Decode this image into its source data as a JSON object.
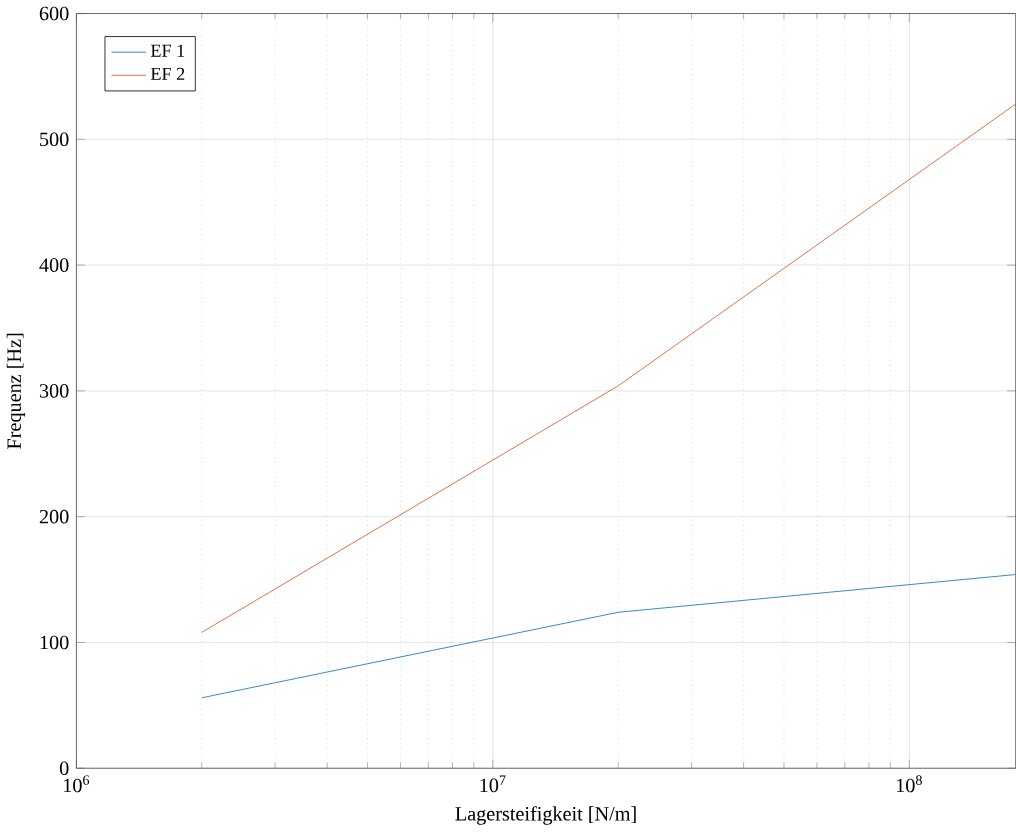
{
  "chart_data": {
    "type": "line",
    "xlabel": "Lagersteifigkeit [N/m]",
    "ylabel": "Frequenz [Hz]",
    "log": "x",
    "xlim": [
      1000000,
      180000000
    ],
    "ylim": [
      0,
      600
    ],
    "xticks": [
      {
        "value": 1000000,
        "label": "10$^{6}$"
      },
      {
        "value": 10000000,
        "label": "10$^{7}$"
      },
      {
        "value": 100000000,
        "label": "10$^{8}$"
      }
    ],
    "yticks": [
      0,
      100,
      200,
      300,
      400,
      500,
      600
    ],
    "grid": true,
    "legend": "top left",
    "marker": "none",
    "line_style": "solid",
    "series": [
      {
        "name": "EF 1",
        "color": "#0072bd",
        "x": [
          2000000,
          20000000,
          180000000
        ],
        "values": [
          56,
          124,
          154
        ]
      },
      {
        "name": "EF 2",
        "color": "#d95319",
        "x": [
          2000000,
          20000000,
          180000000
        ],
        "values": [
          108,
          304,
          528
        ]
      }
    ]
  }
}
